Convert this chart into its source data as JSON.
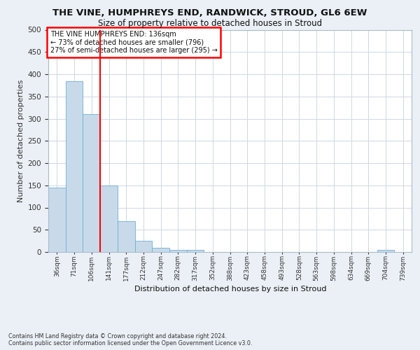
{
  "title1": "THE VINE, HUMPHREYS END, RANDWICK, STROUD, GL6 6EW",
  "title2": "Size of property relative to detached houses in Stroud",
  "xlabel": "Distribution of detached houses by size in Stroud",
  "ylabel": "Number of detached properties",
  "bin_labels": [
    "36sqm",
    "71sqm",
    "106sqm",
    "141sqm",
    "177sqm",
    "212sqm",
    "247sqm",
    "282sqm",
    "317sqm",
    "352sqm",
    "388sqm",
    "423sqm",
    "458sqm",
    "493sqm",
    "528sqm",
    "563sqm",
    "598sqm",
    "634sqm",
    "669sqm",
    "704sqm",
    "739sqm"
  ],
  "bar_values": [
    145,
    385,
    310,
    150,
    70,
    25,
    10,
    5,
    5,
    0,
    0,
    0,
    0,
    0,
    0,
    0,
    0,
    0,
    0,
    5,
    0
  ],
  "bar_color": "#c8daea",
  "bar_edge_color": "#6aaed6",
  "vline_color": "red",
  "annotation_text": "THE VINE HUMPHREYS END: 136sqm\n← 73% of detached houses are smaller (796)\n27% of semi-detached houses are larger (295) →",
  "annotation_box_color": "white",
  "annotation_box_edge": "red",
  "ylim": [
    0,
    500
  ],
  "yticks": [
    0,
    50,
    100,
    150,
    200,
    250,
    300,
    350,
    400,
    450,
    500
  ],
  "footer": "Contains HM Land Registry data © Crown copyright and database right 2024.\nContains public sector information licensed under the Open Government Licence v3.0.",
  "bg_color": "#eaf0f6",
  "plot_bg_color": "#ffffff",
  "grid_color": "#ccd8e4"
}
